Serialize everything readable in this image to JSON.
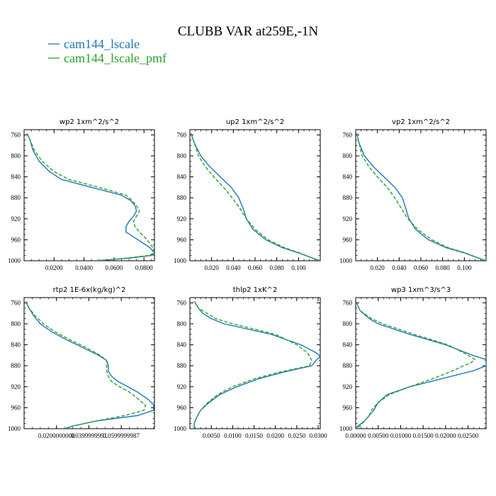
{
  "title": "CLUBB VAR at259E,-1N",
  "legend": [
    {
      "name": "cam144_lscale",
      "color": "#1f77b4"
    },
    {
      "name": "cam144_lscale_pmf",
      "color": "#2ca02c"
    }
  ],
  "chart_data": [
    {
      "type": "line",
      "title": "wp2",
      "units": "1xm^2/s^2",
      "ylim": [
        1000,
        750
      ],
      "yticks": [
        760,
        800,
        840,
        880,
        920,
        960,
        1000
      ],
      "xlim": [
        0.0,
        0.087
      ],
      "xticks": [
        0.02,
        0.04,
        0.06,
        0.08
      ],
      "xticklabels": [
        "0.0200",
        "0.0400",
        "0.0600",
        "0.0800"
      ],
      "y": [
        757,
        770,
        790,
        810,
        830,
        845,
        860,
        875,
        885,
        895,
        905,
        915,
        925,
        935,
        945,
        960,
        975,
        985,
        990,
        995,
        1000
      ],
      "series": [
        {
          "name": "cam144_lscale",
          "style": "solid",
          "values": [
            0.002,
            0.004,
            0.006,
            0.01,
            0.017,
            0.025,
            0.045,
            0.065,
            0.071,
            0.074,
            0.075,
            0.073,
            0.07,
            0.068,
            0.068,
            0.076,
            0.084,
            0.087,
            0.085,
            0.07,
            0.048
          ]
        },
        {
          "name": "cam144_lscale_pmf",
          "style": "dashed",
          "values": [
            0.002,
            0.004,
            0.007,
            0.012,
            0.02,
            0.03,
            0.05,
            0.068,
            0.072,
            0.075,
            0.077,
            0.075,
            0.073,
            0.074,
            0.077,
            0.082,
            0.086,
            0.087,
            0.083,
            0.068,
            0.05
          ]
        }
      ]
    },
    {
      "type": "line",
      "title": "up2",
      "units": "1xm^2/s^2",
      "ylim": [
        1000,
        750
      ],
      "yticks": [
        760,
        800,
        840,
        880,
        920,
        960,
        1000
      ],
      "xlim": [
        0.0,
        0.12
      ],
      "xticks": [
        0.02,
        0.04,
        0.06,
        0.08,
        0.1
      ],
      "xticklabels": [
        "0.020",
        "0.040",
        "0.060",
        "0.080",
        "0.100"
      ],
      "y": [
        757,
        775,
        800,
        820,
        840,
        860,
        880,
        900,
        920,
        940,
        960,
        975,
        985,
        995,
        1000
      ],
      "series": [
        {
          "name": "cam144_lscale",
          "style": "solid",
          "values": [
            0.001,
            0.004,
            0.01,
            0.018,
            0.028,
            0.038,
            0.045,
            0.049,
            0.052,
            0.058,
            0.07,
            0.085,
            0.1,
            0.113,
            0.12
          ]
        },
        {
          "name": "cam144_lscale_pmf",
          "style": "dashed",
          "values": [
            0.001,
            0.004,
            0.008,
            0.014,
            0.022,
            0.031,
            0.039,
            0.046,
            0.052,
            0.06,
            0.072,
            0.087,
            0.101,
            0.113,
            0.12
          ]
        }
      ]
    },
    {
      "type": "line",
      "title": "vp2",
      "units": "1xm^2/s^2",
      "ylim": [
        1000,
        750
      ],
      "yticks": [
        760,
        800,
        840,
        880,
        920,
        960,
        1000
      ],
      "xlim": [
        0.0,
        0.12
      ],
      "xticks": [
        0.02,
        0.04,
        0.06,
        0.08,
        0.1
      ],
      "xticklabels": [
        "0.020",
        "0.040",
        "0.060",
        "0.080",
        "0.100"
      ],
      "y": [
        757,
        775,
        800,
        820,
        840,
        860,
        880,
        900,
        920,
        940,
        960,
        975,
        985,
        995,
        1000
      ],
      "series": [
        {
          "name": "cam144_lscale",
          "style": "solid",
          "values": [
            0.001,
            0.003,
            0.008,
            0.016,
            0.026,
            0.036,
            0.043,
            0.046,
            0.049,
            0.055,
            0.067,
            0.083,
            0.1,
            0.113,
            0.12
          ]
        },
        {
          "name": "cam144_lscale_pmf",
          "style": "dashed",
          "values": [
            0.001,
            0.003,
            0.006,
            0.012,
            0.02,
            0.029,
            0.036,
            0.042,
            0.048,
            0.057,
            0.07,
            0.085,
            0.101,
            0.113,
            0.12
          ]
        }
      ]
    },
    {
      "type": "line",
      "title": "rtp2",
      "units": "1E-6x(kg/kg)^2",
      "ylim": [
        1000,
        750
      ],
      "yticks": [
        760,
        800,
        840,
        880,
        920,
        960,
        1000
      ],
      "xlim": [
        0.0,
        0.0805
      ],
      "xticks": [
        0.02,
        0.04,
        0.06
      ],
      "xticklabels": [
        "0.0200000000",
        "0.0399999991",
        "0.0599999987"
      ],
      "y": [
        757,
        770,
        785,
        800,
        815,
        830,
        845,
        860,
        870,
        880,
        890,
        900,
        910,
        920,
        930,
        945,
        955,
        965,
        975,
        985,
        995,
        1000
      ],
      "series": [
        {
          "name": "cam144_lscale",
          "style": "solid",
          "values": [
            0.001,
            0.003,
            0.006,
            0.01,
            0.017,
            0.026,
            0.036,
            0.046,
            0.051,
            0.052,
            0.052,
            0.054,
            0.058,
            0.064,
            0.07,
            0.077,
            0.08,
            0.08,
            0.07,
            0.045,
            0.03,
            0.025
          ]
        },
        {
          "name": "cam144_lscale_pmf",
          "style": "dashed",
          "values": [
            0.001,
            0.003,
            0.007,
            0.012,
            0.019,
            0.028,
            0.038,
            0.047,
            0.051,
            0.051,
            0.051,
            0.052,
            0.054,
            0.059,
            0.065,
            0.071,
            0.075,
            0.074,
            0.062,
            0.045,
            0.03,
            0.025
          ]
        }
      ]
    },
    {
      "type": "line",
      "title": "thlp2",
      "units": "1xK^2",
      "ylim": [
        1000,
        750
      ],
      "yticks": [
        760,
        800,
        840,
        880,
        920,
        960,
        1000
      ],
      "xlim": [
        0.0,
        0.0305
      ],
      "xticks": [
        0.005,
        0.01,
        0.015,
        0.02,
        0.025,
        0.03
      ],
      "xticklabels": [
        "0.0050",
        "0.0100",
        "0.0150",
        "0.0200",
        "0.0250",
        "0.0300"
      ],
      "y": [
        757,
        770,
        780,
        790,
        800,
        820,
        840,
        855,
        862,
        870,
        880,
        892,
        905,
        920,
        935,
        950,
        965,
        980,
        990,
        1000
      ],
      "series": [
        {
          "name": "cam144_lscale",
          "style": "solid",
          "values": [
            0.001,
            0.002,
            0.003,
            0.005,
            0.008,
            0.019,
            0.026,
            0.0295,
            0.0305,
            0.0295,
            0.0285,
            0.022,
            0.016,
            0.011,
            0.007,
            0.0045,
            0.0025,
            0.0015,
            0.001,
            0.001
          ]
        },
        {
          "name": "cam144_lscale_pmf",
          "style": "dashed",
          "values": [
            0.001,
            0.002,
            0.004,
            0.006,
            0.01,
            0.02,
            0.025,
            0.0275,
            0.028,
            0.0285,
            0.028,
            0.021,
            0.015,
            0.01,
            0.0065,
            0.0042,
            0.0025,
            0.0015,
            0.001,
            0.001
          ]
        }
      ]
    },
    {
      "type": "line",
      "title": "wp3",
      "units": "1xm^3/s^3",
      "ylim": [
        1000,
        750
      ],
      "yticks": [
        760,
        800,
        840,
        880,
        920,
        960,
        1000
      ],
      "xlim": [
        0.0,
        0.029
      ],
      "xticks": [
        0.0,
        0.005,
        0.01,
        0.015,
        0.02,
        0.025
      ],
      "xticklabels": [
        "0.00000",
        "0.00500",
        "0.01000",
        "0.01500",
        "0.02000",
        "0.02500"
      ],
      "y": [
        757,
        775,
        790,
        800,
        820,
        840,
        860,
        868,
        875,
        880,
        890,
        905,
        920,
        935,
        950,
        965,
        975,
        985,
        995,
        1000
      ],
      "series": [
        {
          "name": "cam144_lscale",
          "style": "solid",
          "values": [
            0.0,
            0.001,
            0.003,
            0.005,
            0.012,
            0.02,
            0.026,
            0.029,
            0.029,
            0.029,
            0.026,
            0.019,
            0.012,
            0.007,
            0.005,
            0.004,
            0.003,
            0.002,
            0.0005,
            0.0
          ]
        },
        {
          "name": "cam144_lscale_pmf",
          "style": "dashed",
          "values": [
            0.0,
            0.001,
            0.0035,
            0.006,
            0.013,
            0.0205,
            0.025,
            0.0265,
            0.0255,
            0.024,
            0.0215,
            0.017,
            0.012,
            0.0075,
            0.005,
            0.0035,
            0.003,
            0.002,
            0.001,
            0.0
          ]
        }
      ]
    }
  ]
}
